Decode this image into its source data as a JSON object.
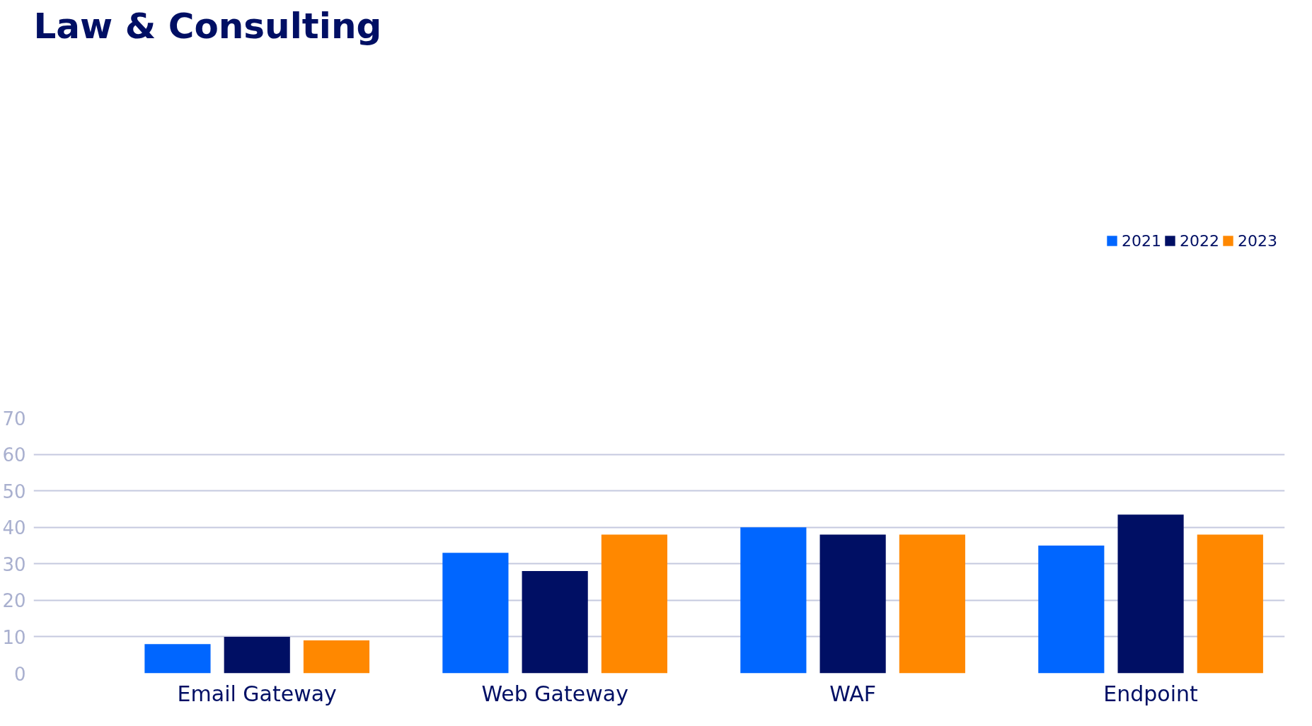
{
  "chart_data": {
    "type": "bar",
    "title": "Law & Consulting",
    "categories": [
      "Email Gateway",
      "Web Gateway",
      "WAF",
      "Endpoint"
    ],
    "series": [
      {
        "name": "2021",
        "color": "#0066ff",
        "values": [
          8,
          33,
          40,
          35
        ]
      },
      {
        "name": "2022",
        "color": "#000f64",
        "values": [
          10,
          28,
          38,
          43.5
        ]
      },
      {
        "name": "2023",
        "color": "#ff8800",
        "values": [
          9,
          38,
          38,
          38
        ]
      }
    ],
    "ylim": [
      0,
      70
    ],
    "yticks": [
      0,
      10,
      20,
      30,
      40,
      50,
      60,
      70
    ],
    "grid": "y",
    "legend": "top right"
  }
}
